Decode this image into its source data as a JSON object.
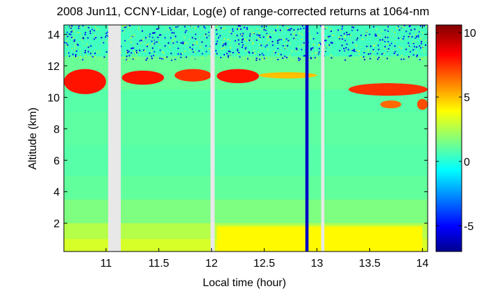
{
  "chart_data": {
    "type": "heatmap",
    "title": "2008 Jun11, CCNY-Lidar, Log(e) of range-corrected returns at 1064-nm",
    "xlabel": "Local time (hour)",
    "ylabel": "Altitude (km)",
    "xlim": [
      10.6,
      14.05
    ],
    "ylim": [
      0.2,
      14.6
    ],
    "x_ticks": [
      "11",
      "11.5",
      "12",
      "12.5",
      "13",
      "13.5",
      "14"
    ],
    "y_ticks": [
      "2",
      "4",
      "6",
      "8",
      "10",
      "12",
      "14"
    ],
    "colorbar": {
      "range": [
        -7,
        10.6
      ],
      "ticks": [
        "10",
        "5",
        "0",
        "-5"
      ]
    },
    "data_gaps": [
      [
        11.02,
        11.14
      ],
      [
        11.99,
        12.03
      ],
      [
        13.04,
        13.07
      ]
    ],
    "features": {
      "cirrus_layers": [
        {
          "x": [
            10.6,
            11.0
          ],
          "y": [
            10.2,
            11.8
          ],
          "value": 8
        },
        {
          "x": [
            11.15,
            11.55
          ],
          "y": [
            10.8,
            11.7
          ],
          "value": 8
        },
        {
          "x": [
            11.65,
            12.0
          ],
          "y": [
            11.0,
            11.8
          ],
          "value": 7.5
        },
        {
          "x": [
            12.05,
            12.45
          ],
          "y": [
            10.9,
            11.8
          ],
          "value": 8
        },
        {
          "x": [
            12.45,
            13.0
          ],
          "y": [
            11.2,
            11.6
          ],
          "value": 5
        },
        {
          "x": [
            13.3,
            14.05
          ],
          "y": [
            10.1,
            10.9
          ],
          "value": 7.5
        },
        {
          "x": [
            13.6,
            13.8
          ],
          "y": [
            9.3,
            9.8
          ],
          "value": 6.5
        },
        {
          "x": [
            13.95,
            14.05
          ],
          "y": [
            9.2,
            9.9
          ],
          "value": 7
        }
      ],
      "boundary_layer": {
        "x": [
          12.05,
          14.0
        ],
        "y": [
          0.2,
          1.8
        ],
        "value": 4
      },
      "low_signal_column": {
        "x": [
          12.89,
          12.92
        ],
        "y": [
          0.2,
          14.6
        ],
        "value": -6
      }
    }
  }
}
